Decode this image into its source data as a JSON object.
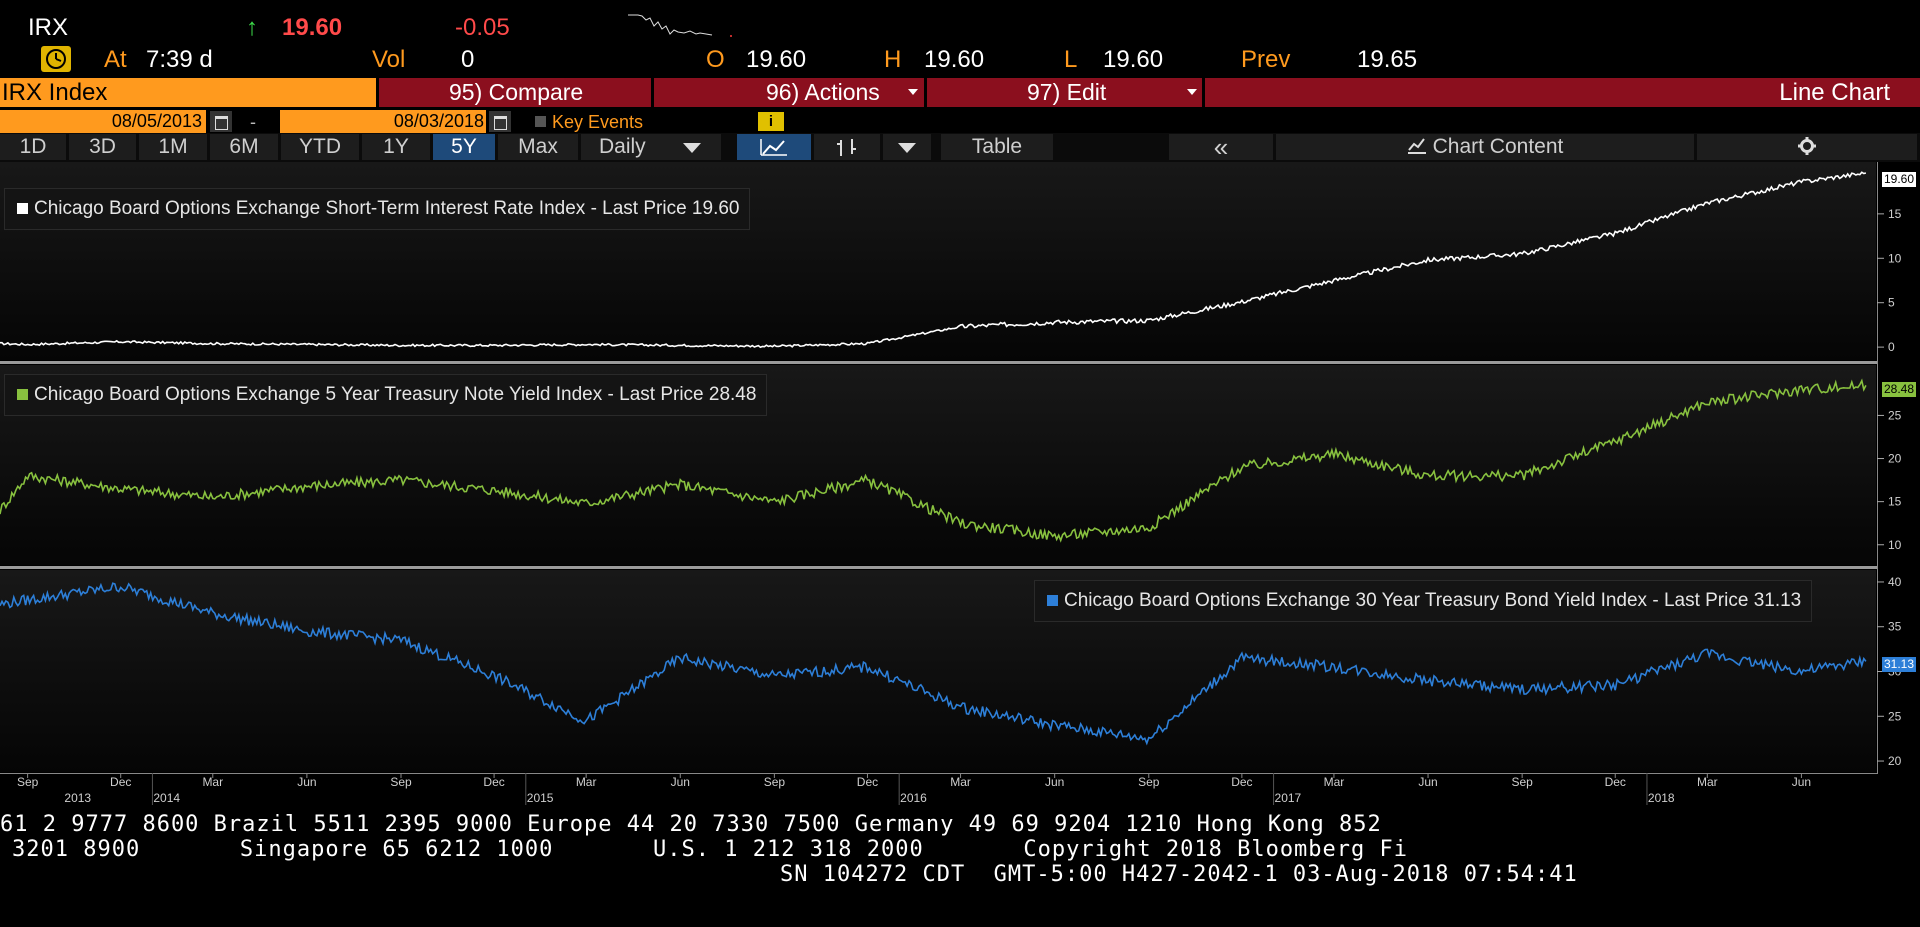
{
  "quote": {
    "ticker": "IRX",
    "arrow": "↑",
    "last": "19.60",
    "change": "-0.05",
    "at_label": "At",
    "time": "7:39 d",
    "vol_label": "Vol",
    "vol": "0",
    "open_label": "O",
    "open": "19.60",
    "high_label": "H",
    "high": "19.60",
    "low_label": "L",
    "low": "19.60",
    "prev_label": "Prev",
    "prev": "19.65"
  },
  "toolbar": {
    "security": "IRX Index",
    "compare": "95) Compare",
    "actions": "96) Actions",
    "edit": "97) Edit",
    "chart_type": "Line Chart"
  },
  "dates": {
    "start": "08/05/2013",
    "dash": "-",
    "end": "08/03/2018",
    "key_events": "Key Events",
    "info": "i"
  },
  "ranges": {
    "buttons": [
      "1D",
      "3D",
      "1M",
      "6M",
      "YTD",
      "1Y",
      "5Y",
      "Max"
    ],
    "active": "5Y",
    "frequency": "Daily",
    "table": "Table",
    "collapse": "«",
    "chart_content": "Chart Content"
  },
  "colors": {
    "orange": "#ff9a1e",
    "maroon": "#8b0f1e",
    "up_green": "#3ddc4a",
    "down_red": "#ff3b3b",
    "series1": "#ffffff",
    "series2": "#88c13f",
    "series3": "#2d7fd8"
  },
  "icons": [
    "bell-icon",
    "calendar-icon",
    "line-chart-icon",
    "bar-chart-icon",
    "chevron-down-icon",
    "collapse-icon",
    "chart-content-icon",
    "gear-icon"
  ],
  "chart_data": [
    {
      "type": "line",
      "title": "Chicago Board Options Exchange Short-Term Interest Rate Index - Last Price 19.60",
      "last_tag": "19.60",
      "y_ticks": [
        0,
        5,
        10,
        15
      ],
      "ylim": [
        -1,
        20.5
      ],
      "x": [
        "2013-08-05",
        "2013-09-01",
        "2013-12-01",
        "2014-03-01",
        "2014-06-01",
        "2014-09-01",
        "2014-12-01",
        "2015-03-01",
        "2015-06-01",
        "2015-09-01",
        "2015-12-01",
        "2016-03-01",
        "2016-06-01",
        "2016-09-01",
        "2016-12-01",
        "2017-03-01",
        "2017-06-01",
        "2017-09-01",
        "2017-12-01",
        "2018-03-01",
        "2018-06-01",
        "2018-08-03"
      ],
      "series": [
        {
          "values": [
            0.4,
            0.3,
            0.6,
            0.4,
            0.3,
            0.2,
            0.2,
            0.3,
            0.2,
            0.1,
            0.4,
            2.3,
            2.8,
            3.0,
            5.1,
            7.5,
            9.8,
            10.5,
            12.8,
            16.2,
            18.6,
            19.6
          ]
        }
      ]
    },
    {
      "type": "line",
      "title": "Chicago Board Options Exchange 5 Year Treasury Note Yield Index - Last Price 28.48",
      "last_tag": "28.48",
      "y_ticks": [
        10,
        15,
        20,
        25
      ],
      "ylim": [
        8,
        30.5
      ],
      "x": [
        "2013-08-05",
        "2013-09-01",
        "2013-12-01",
        "2014-03-01",
        "2014-06-01",
        "2014-09-01",
        "2014-12-01",
        "2015-03-01",
        "2015-06-01",
        "2015-09-01",
        "2015-12-01",
        "2016-03-01",
        "2016-06-01",
        "2016-09-01",
        "2016-12-01",
        "2017-03-01",
        "2017-06-01",
        "2017-09-01",
        "2017-12-01",
        "2018-03-01",
        "2018-06-01",
        "2018-08-03"
      ],
      "series": [
        {
          "values": [
            14.0,
            18.0,
            16.5,
            15.5,
            16.8,
            17.5,
            16.3,
            14.8,
            17.0,
            15.0,
            17.5,
            12.5,
            11.0,
            12.0,
            19.0,
            20.5,
            18.0,
            18.0,
            22.0,
            26.5,
            28.0,
            28.48
          ]
        }
      ]
    },
    {
      "type": "line",
      "title": "Chicago Board Options Exchange 30 Year Treasury Bond Yield Index - Last Price 31.13",
      "last_tag": "31.13",
      "y_ticks": [
        20,
        25,
        30,
        35,
        40
      ],
      "ylim": [
        19,
        41
      ],
      "x": [
        "2013-08-05",
        "2013-09-01",
        "2013-12-01",
        "2014-03-01",
        "2014-06-01",
        "2014-09-01",
        "2014-12-01",
        "2015-03-01",
        "2015-06-01",
        "2015-09-01",
        "2015-12-01",
        "2016-03-01",
        "2016-06-01",
        "2016-09-01",
        "2016-12-01",
        "2017-03-01",
        "2017-06-01",
        "2017-09-01",
        "2017-12-01",
        "2018-03-01",
        "2018-06-01",
        "2018-08-03"
      ],
      "series": [
        {
          "values": [
            37.5,
            38.0,
            39.5,
            36.5,
            34.5,
            33.5,
            29.5,
            24.5,
            31.5,
            29.5,
            30.5,
            26.0,
            24.0,
            22.5,
            31.5,
            30.5,
            29.0,
            28.0,
            28.5,
            32.0,
            30.0,
            31.13
          ]
        }
      ]
    }
  ],
  "x_axis": {
    "months": [
      "Sep",
      "Dec",
      "Mar",
      "Jun",
      "Sep",
      "Dec",
      "Mar",
      "Jun",
      "Sep",
      "Dec",
      "Mar",
      "Jun",
      "Sep",
      "Dec",
      "Mar",
      "Jun",
      "Sep",
      "Dec",
      "Mar",
      "Jun"
    ],
    "years": [
      "2013",
      "2014",
      "2015",
      "2016",
      "2017",
      "2018"
    ]
  },
  "footer": {
    "line1": "61 2 9777 8600 Brazil 5511 2395 9000 Europe 44 20 7330 7500 Germany 49 69 9204 1210 Hong Kong 852",
    "line2": "3201 8900       Singapore 65 6212 1000       U.S. 1 212 318 2000       Copyright 2018 Bloomberg Fi",
    "line3": "SN 104272 CDT  GMT-5:00 H427-2042-1 03-Aug-2018 07:54:41"
  }
}
